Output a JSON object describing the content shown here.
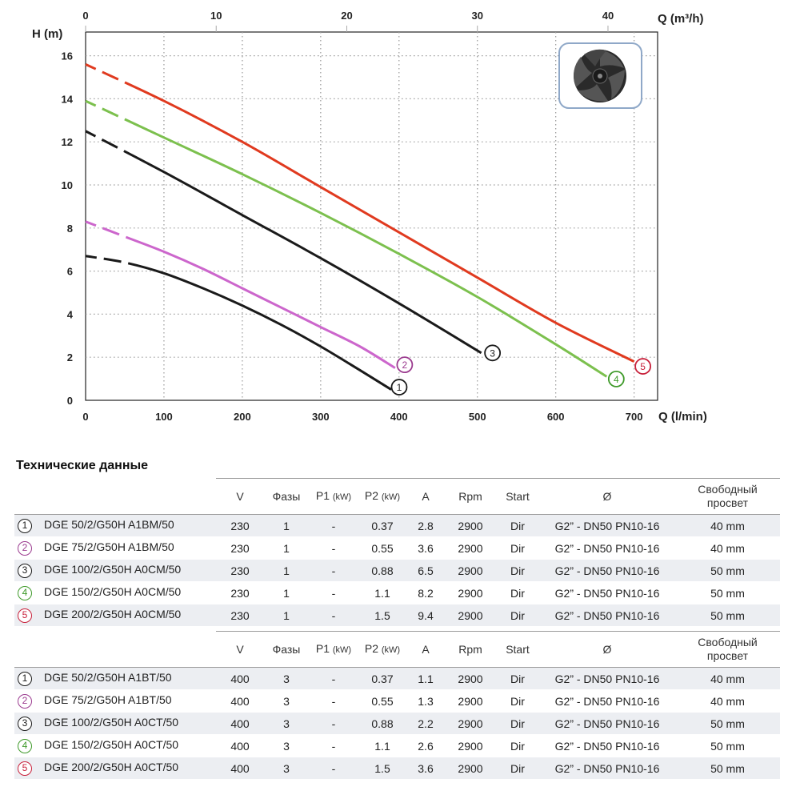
{
  "chart_data": {
    "type": "line",
    "ylabel": "H (m)",
    "xlabel": "Q (l/min)",
    "x2label": "Q (m³/h)",
    "xlim": [
      0,
      730
    ],
    "x2lim": [
      0,
      43.8
    ],
    "ylim": [
      0,
      17.1
    ],
    "xticks": [
      0,
      100,
      200,
      300,
      400,
      500,
      600,
      700
    ],
    "x2ticks": [
      0,
      10,
      20,
      30,
      40
    ],
    "yticks": [
      0,
      2,
      4,
      6,
      8,
      10,
      12,
      14,
      16
    ],
    "grid": true,
    "series": [
      {
        "name": "1",
        "color": "#1a1a1a",
        "x": [
          0,
          50,
          100,
          150,
          200,
          250,
          300,
          350,
          390
        ],
        "y": [
          6.7,
          6.4,
          5.9,
          5.2,
          4.4,
          3.5,
          2.5,
          1.4,
          0.5
        ]
      },
      {
        "name": "2",
        "color": "#cc66cc",
        "x": [
          0,
          50,
          100,
          150,
          200,
          250,
          300,
          350,
          395
        ],
        "y": [
          8.3,
          7.6,
          6.9,
          6.1,
          5.2,
          4.3,
          3.4,
          2.5,
          1.5
        ]
      },
      {
        "name": "3",
        "color": "#1a1a1a",
        "x": [
          0,
          100,
          200,
          300,
          400,
          505
        ],
        "y": [
          12.5,
          10.6,
          8.6,
          6.6,
          4.5,
          2.2
        ]
      },
      {
        "name": "4",
        "color": "#7cc04e",
        "x": [
          0,
          100,
          200,
          300,
          400,
          500,
          600,
          665
        ],
        "y": [
          13.9,
          12.2,
          10.5,
          8.7,
          6.8,
          4.8,
          2.6,
          1.1
        ]
      },
      {
        "name": "5",
        "color": "#e03a1f",
        "x": [
          0,
          100,
          200,
          300,
          400,
          500,
          600,
          700
        ],
        "y": [
          15.6,
          13.9,
          12.0,
          9.9,
          7.8,
          5.7,
          3.6,
          1.8
        ]
      }
    ]
  },
  "table": {
    "title": "Технические данные",
    "headers": {
      "v": "V",
      "phases": "Фазы",
      "p1": "P1",
      "p1_unit": "(kW)",
      "p2": "P2",
      "p2_unit": "(kW)",
      "a": "A",
      "rpm": "Rpm",
      "start": "Start",
      "diam": "Ø",
      "clearance_1": "Свободный",
      "clearance_2": "просвет"
    },
    "circle_colors": [
      "#1a1a1a",
      "#9b3b8f",
      "#1a1a1a",
      "#3f9a2a",
      "#c8213b"
    ],
    "single_phase": [
      {
        "num": "1",
        "model": "DGE 50/2/G50H A1BM/50",
        "v": "230",
        "phases": "1",
        "p1": "-",
        "p2": "0.37",
        "a": "2.8",
        "rpm": "2900",
        "start": "Dir",
        "diam": "G2” - DN50 PN10-16",
        "clear": "40 mm"
      },
      {
        "num": "2",
        "model": "DGE 75/2/G50H A1BM/50",
        "v": "230",
        "phases": "1",
        "p1": "-",
        "p2": "0.55",
        "a": "3.6",
        "rpm": "2900",
        "start": "Dir",
        "diam": "G2” - DN50 PN10-16",
        "clear": "40 mm"
      },
      {
        "num": "3",
        "model": "DGE 100/2/G50H A0CM/50",
        "v": "230",
        "phases": "1",
        "p1": "-",
        "p2": "0.88",
        "a": "6.5",
        "rpm": "2900",
        "start": "Dir",
        "diam": "G2” - DN50 PN10-16",
        "clear": "50 mm"
      },
      {
        "num": "4",
        "model": "DGE 150/2/G50H A0CM/50",
        "v": "230",
        "phases": "1",
        "p1": "-",
        "p2": "1.1",
        "a": "8.2",
        "rpm": "2900",
        "start": "Dir",
        "diam": "G2” - DN50 PN10-16",
        "clear": "50 mm"
      },
      {
        "num": "5",
        "model": "DGE 200/2/G50H A0CM/50",
        "v": "230",
        "phases": "1",
        "p1": "-",
        "p2": "1.5",
        "a": "9.4",
        "rpm": "2900",
        "start": "Dir",
        "diam": "G2” - DN50 PN10-16",
        "clear": "50 mm"
      }
    ],
    "three_phase": [
      {
        "num": "1",
        "model": "DGE 50/2/G50H A1BT/50",
        "v": "400",
        "phases": "3",
        "p1": "-",
        "p2": "0.37",
        "a": "1.1",
        "rpm": "2900",
        "start": "Dir",
        "diam": "G2” - DN50 PN10-16",
        "clear": "40 mm"
      },
      {
        "num": "2",
        "model": "DGE 75/2/G50H A1BT/50",
        "v": "400",
        "phases": "3",
        "p1": "-",
        "p2": "0.55",
        "a": "1.3",
        "rpm": "2900",
        "start": "Dir",
        "diam": "G2” - DN50 PN10-16",
        "clear": "40 mm"
      },
      {
        "num": "3",
        "model": "DGE 100/2/G50H A0CT/50",
        "v": "400",
        "phases": "3",
        "p1": "-",
        "p2": "0.88",
        "a": "2.2",
        "rpm": "2900",
        "start": "Dir",
        "diam": "G2” - DN50 PN10-16",
        "clear": "50 mm"
      },
      {
        "num": "4",
        "model": "DGE 150/2/G50H A0CT/50",
        "v": "400",
        "phases": "3",
        "p1": "-",
        "p2": "1.1",
        "a": "2.6",
        "rpm": "2900",
        "start": "Dir",
        "diam": "G2” - DN50 PN10-16",
        "clear": "50 mm"
      },
      {
        "num": "5",
        "model": "DGE 200/2/G50H A0CT/50",
        "v": "400",
        "phases": "3",
        "p1": "-",
        "p2": "1.5",
        "a": "3.6",
        "rpm": "2900",
        "start": "Dir",
        "diam": "G2” - DN50 PN10-16",
        "clear": "50 mm"
      }
    ]
  }
}
